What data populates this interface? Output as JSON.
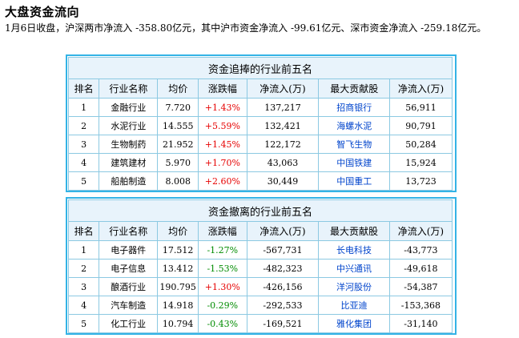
{
  "title": "大盘资金流向",
  "summary": "1月6日收盘，沪深两市净流入 -358.80亿元，其中沪市资金净流入 -99.61亿元、深市资金净流入 -259.18亿元。",
  "inflow_table": {
    "caption": "资金追捧的行业前五名",
    "headers": [
      "排名",
      "行业名称",
      "均价",
      "涨跌幅",
      "净流入(万)",
      "最大贡献股",
      "净流入(万)"
    ],
    "rows": [
      {
        "rank": "1",
        "industry": "金融行业",
        "price": "7.720",
        "change": "+1.43%",
        "inflow": "137,217",
        "stock": "招商银行",
        "stock_inflow": "56,911"
      },
      {
        "rank": "2",
        "industry": "水泥行业",
        "price": "14.555",
        "change": "+5.59%",
        "inflow": "132,421",
        "stock": "海螺水泥",
        "stock_inflow": "90,791"
      },
      {
        "rank": "3",
        "industry": "生物制药",
        "price": "21.952",
        "change": "+1.45%",
        "inflow": "122,172",
        "stock": "智飞生物",
        "stock_inflow": "50,284"
      },
      {
        "rank": "4",
        "industry": "建筑建材",
        "price": "5.970",
        "change": "+1.70%",
        "inflow": "43,063",
        "stock": "中国铁建",
        "stock_inflow": "15,924"
      },
      {
        "rank": "5",
        "industry": "船舶制造",
        "price": "8.008",
        "change": "+2.60%",
        "inflow": "30,449",
        "stock": "中国重工",
        "stock_inflow": "13,723"
      }
    ]
  },
  "outflow_table": {
    "caption": "资金撤离的行业前五名",
    "headers": [
      "排名",
      "行业名称",
      "均价",
      "涨跌幅",
      "净流入(万)",
      "最大贡献股",
      "净流入(万)"
    ],
    "rows": [
      {
        "rank": "1",
        "industry": "电子器件",
        "price": "17.512",
        "change": "-1.27%",
        "inflow": "-567,731",
        "stock": "长电科技",
        "stock_inflow": "-43,773"
      },
      {
        "rank": "2",
        "industry": "电子信息",
        "price": "13.412",
        "change": "-1.53%",
        "inflow": "-482,323",
        "stock": "中兴通讯",
        "stock_inflow": "-49,618"
      },
      {
        "rank": "3",
        "industry": "酿酒行业",
        "price": "190.795",
        "change": "+1.30%",
        "inflow": "-426,156",
        "stock": "洋河股份",
        "stock_inflow": "-54,387"
      },
      {
        "rank": "4",
        "industry": "汽车制造",
        "price": "14.918",
        "change": "-0.29%",
        "inflow": "-292,533",
        "stock": "比亚迪",
        "stock_inflow": "-153,368"
      },
      {
        "rank": "5",
        "industry": "化工行业",
        "price": "10.794",
        "change": "-0.43%",
        "inflow": "-169,521",
        "stock": "雅化集团",
        "stock_inflow": "-31,140"
      }
    ]
  },
  "colors": {
    "up": "#e60000",
    "down": "#008c00",
    "link": "#0044cc",
    "border": "#33b3e6",
    "header_bg": "#e8f3fb"
  }
}
